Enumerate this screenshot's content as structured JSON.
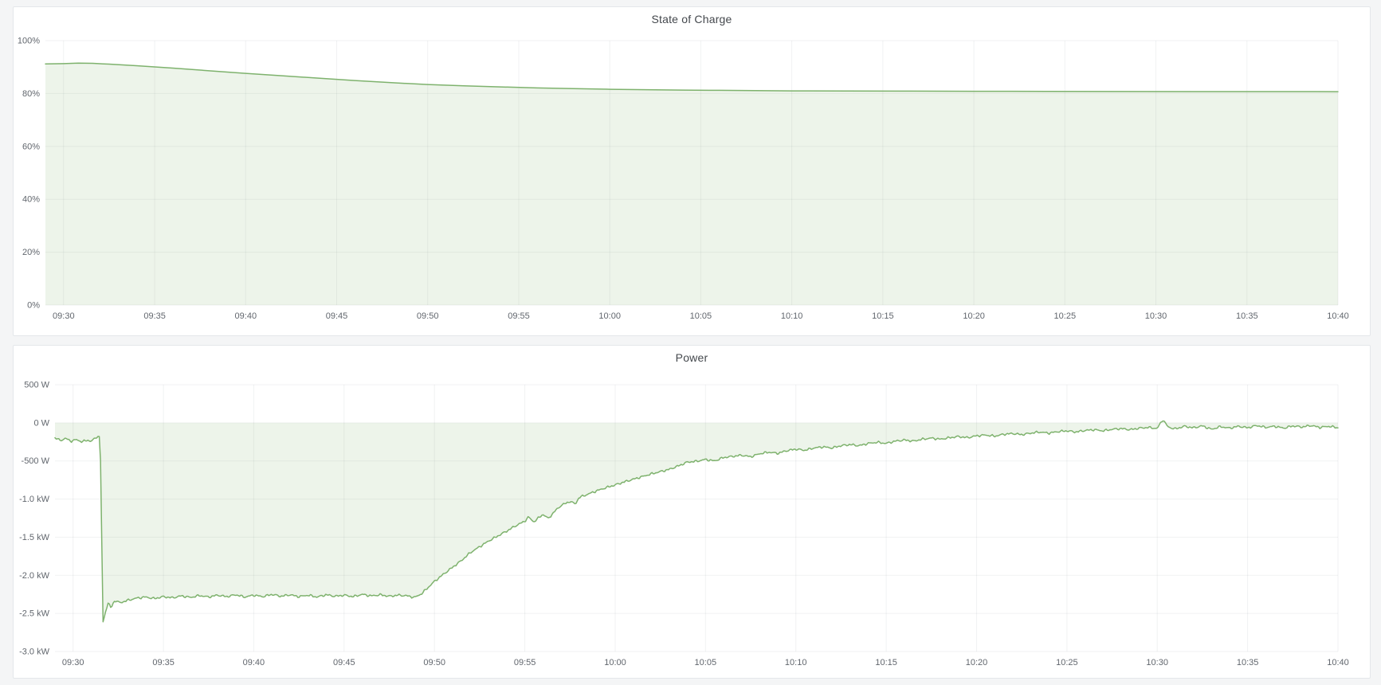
{
  "colors": {
    "page_background": "#f4f5f6",
    "panel_background": "#ffffff",
    "panel_border": "#e4e7ea",
    "title_text": "#44484d",
    "tick_text": "#61666d",
    "gridline": "rgba(20,30,50,0.06)",
    "series_green": "#7eb26d"
  },
  "chart_data": [
    {
      "type": "area",
      "title": "State of Charge",
      "legend_position": "none",
      "grid": "on",
      "xlabel": "",
      "ylabel": "",
      "x_tick_labels": [
        "09:30",
        "09:35",
        "09:40",
        "09:45",
        "09:50",
        "09:55",
        "10:00",
        "10:05",
        "10:10",
        "10:15",
        "10:20",
        "10:25",
        "10:30",
        "10:35",
        "10:40"
      ],
      "x_tick_minutes": [
        0,
        5,
        10,
        15,
        20,
        25,
        30,
        35,
        40,
        45,
        50,
        55,
        60,
        65,
        70
      ],
      "x_domain_minutes": [
        -1,
        70
      ],
      "y_domain": [
        0,
        100
      ],
      "y_ticks": [
        {
          "label": "100%",
          "value": 100
        },
        {
          "label": "80%",
          "value": 80
        },
        {
          "label": "60%",
          "value": 60
        },
        {
          "label": "40%",
          "value": 40
        },
        {
          "label": "20%",
          "value": 20
        },
        {
          "label": "0%",
          "value": 0
        }
      ],
      "unit": "percent",
      "line_color": "#7eb26d",
      "fill_color": "rgba(126,178,109,0.14)",
      "fill_to_value": 0,
      "points": [
        [
          -1,
          91.2
        ],
        [
          0,
          91.3
        ],
        [
          0.8,
          91.5
        ],
        [
          1.6,
          91.4
        ],
        [
          2.5,
          91.1
        ],
        [
          4,
          90.5
        ],
        [
          6,
          89.6
        ],
        [
          8,
          88.6
        ],
        [
          10,
          87.6
        ],
        [
          12,
          86.7
        ],
        [
          14,
          85.8
        ],
        [
          16,
          84.9
        ],
        [
          18,
          84.1
        ],
        [
          20,
          83.4
        ],
        [
          22,
          82.9
        ],
        [
          24,
          82.5
        ],
        [
          26,
          82.1
        ],
        [
          28,
          81.85
        ],
        [
          30,
          81.6
        ],
        [
          32,
          81.45
        ],
        [
          34,
          81.3
        ],
        [
          36,
          81.2
        ],
        [
          38,
          81.1
        ],
        [
          40,
          81.0
        ],
        [
          43,
          80.95
        ],
        [
          46,
          80.9
        ],
        [
          50,
          80.85
        ],
        [
          54,
          80.8
        ],
        [
          58,
          80.77
        ],
        [
          62,
          80.74
        ],
        [
          66,
          80.72
        ],
        [
          70,
          80.7
        ]
      ]
    },
    {
      "type": "area",
      "title": "Power",
      "legend_position": "none",
      "grid": "on",
      "xlabel": "",
      "ylabel": "",
      "x_tick_labels": [
        "09:30",
        "09:35",
        "09:40",
        "09:45",
        "09:50",
        "09:55",
        "10:00",
        "10:05",
        "10:10",
        "10:15",
        "10:20",
        "10:25",
        "10:30",
        "10:35",
        "10:40"
      ],
      "x_tick_minutes": [
        0,
        5,
        10,
        15,
        20,
        25,
        30,
        35,
        40,
        45,
        50,
        55,
        60,
        65,
        70
      ],
      "x_domain_minutes": [
        -1,
        70
      ],
      "y_domain": [
        -3000,
        500
      ],
      "y_ticks": [
        {
          "label": "500 W",
          "value": 500
        },
        {
          "label": "0 W",
          "value": 0
        },
        {
          "label": "-500 W",
          "value": -500
        },
        {
          "label": "-1.0 kW",
          "value": -1000
        },
        {
          "label": "-1.5 kW",
          "value": -1500
        },
        {
          "label": "-2.0 kW",
          "value": -2000
        },
        {
          "label": "-2.5 kW",
          "value": -2500
        },
        {
          "label": "-3.0 kW",
          "value": -3000
        }
      ],
      "unit": "watt",
      "line_color": "#7eb26d",
      "fill_color": "rgba(126,178,109,0.14)",
      "fill_to_value": 0,
      "noise": {
        "amp_w": 14,
        "step_minutes": 0.07
      },
      "points": [
        [
          -1,
          -200
        ],
        [
          -0.7,
          -230
        ],
        [
          -0.4,
          -205
        ],
        [
          -0.1,
          -240
        ],
        [
          0.2,
          -220
        ],
        [
          0.5,
          -250
        ],
        [
          0.8,
          -225
        ],
        [
          1.0,
          -245
        ],
        [
          1.2,
          -205
        ],
        [
          1.35,
          -175
        ],
        [
          1.5,
          -190
        ],
        [
          1.58,
          -1400
        ],
        [
          1.65,
          -2630
        ],
        [
          1.8,
          -2470
        ],
        [
          1.95,
          -2360
        ],
        [
          2.1,
          -2430
        ],
        [
          2.3,
          -2330
        ],
        [
          2.6,
          -2360
        ],
        [
          3,
          -2330
        ],
        [
          3.5,
          -2300
        ],
        [
          4,
          -2285
        ],
        [
          4.5,
          -2305
        ],
        [
          5,
          -2280
        ],
        [
          5.5,
          -2295
        ],
        [
          6,
          -2270
        ],
        [
          6.5,
          -2290
        ],
        [
          7,
          -2265
        ],
        [
          7.5,
          -2285
        ],
        [
          8,
          -2260
        ],
        [
          8.5,
          -2280
        ],
        [
          9,
          -2255
        ],
        [
          9.5,
          -2285
        ],
        [
          10,
          -2260
        ],
        [
          10.5,
          -2280
        ],
        [
          11,
          -2250
        ],
        [
          11.5,
          -2275
        ],
        [
          12,
          -2255
        ],
        [
          12.5,
          -2280
        ],
        [
          13,
          -2260
        ],
        [
          13.5,
          -2285
        ],
        [
          14,
          -2255
        ],
        [
          14.5,
          -2275
        ],
        [
          15,
          -2260
        ],
        [
          15.5,
          -2280
        ],
        [
          16,
          -2250
        ],
        [
          16.5,
          -2270
        ],
        [
          17,
          -2255
        ],
        [
          17.5,
          -2275
        ],
        [
          18,
          -2260
        ],
        [
          18.5,
          -2270
        ],
        [
          18.9,
          -2290
        ],
        [
          19.3,
          -2240
        ],
        [
          19.6,
          -2170
        ],
        [
          20,
          -2080
        ],
        [
          20.5,
          -1985
        ],
        [
          21,
          -1895
        ],
        [
          21.5,
          -1805
        ],
        [
          22,
          -1700
        ],
        [
          22.5,
          -1625
        ],
        [
          23,
          -1550
        ],
        [
          23.5,
          -1485
        ],
        [
          24,
          -1420
        ],
        [
          24.5,
          -1350
        ],
        [
          25,
          -1290
        ],
        [
          25.2,
          -1235
        ],
        [
          25.5,
          -1300
        ],
        [
          26,
          -1200
        ],
        [
          26.3,
          -1255
        ],
        [
          26.7,
          -1150
        ],
        [
          27,
          -1085
        ],
        [
          27.5,
          -1030
        ],
        [
          27.8,
          -1065
        ],
        [
          28,
          -980
        ],
        [
          28.5,
          -935
        ],
        [
          29,
          -890
        ],
        [
          29.5,
          -850
        ],
        [
          30,
          -815
        ],
        [
          30.5,
          -775
        ],
        [
          31,
          -740
        ],
        [
          31.5,
          -705
        ],
        [
          32,
          -670
        ],
        [
          32.5,
          -640
        ],
        [
          33,
          -610
        ],
        [
          33.5,
          -565
        ],
        [
          34,
          -515
        ],
        [
          34.5,
          -505
        ],
        [
          35,
          -480
        ],
        [
          35.5,
          -500
        ],
        [
          36,
          -455
        ],
        [
          36.5,
          -440
        ],
        [
          37,
          -425
        ],
        [
          37.5,
          -445
        ],
        [
          38,
          -405
        ],
        [
          38.5,
          -385
        ],
        [
          39,
          -400
        ],
        [
          39.5,
          -365
        ],
        [
          40,
          -345
        ],
        [
          40.5,
          -360
        ],
        [
          41,
          -330
        ],
        [
          41.5,
          -315
        ],
        [
          42,
          -330
        ],
        [
          42.5,
          -300
        ],
        [
          43,
          -285
        ],
        [
          43.5,
          -300
        ],
        [
          44,
          -270
        ],
        [
          44.5,
          -255
        ],
        [
          45,
          -270
        ],
        [
          45.5,
          -240
        ],
        [
          46,
          -225
        ],
        [
          46.5,
          -240
        ],
        [
          47,
          -215
        ],
        [
          47.5,
          -200
        ],
        [
          48,
          -215
        ],
        [
          48.5,
          -195
        ],
        [
          49,
          -180
        ],
        [
          49.5,
          -195
        ],
        [
          50,
          -170
        ],
        [
          50.5,
          -160
        ],
        [
          51,
          -175
        ],
        [
          51.5,
          -150
        ],
        [
          52,
          -140
        ],
        [
          52.5,
          -155
        ],
        [
          53,
          -135
        ],
        [
          53.5,
          -120
        ],
        [
          54,
          -135
        ],
        [
          54.5,
          -115
        ],
        [
          55,
          -105
        ],
        [
          55.5,
          -120
        ],
        [
          56,
          -100
        ],
        [
          56.5,
          -90
        ],
        [
          57,
          -105
        ],
        [
          57.5,
          -85
        ],
        [
          58,
          -75
        ],
        [
          58.5,
          -90
        ],
        [
          59,
          -70
        ],
        [
          59.5,
          -60
        ],
        [
          60,
          -75
        ],
        [
          60.3,
          45
        ],
        [
          60.6,
          -55
        ],
        [
          61,
          -80
        ],
        [
          61.5,
          -45
        ],
        [
          62,
          -65
        ],
        [
          62.5,
          -40
        ],
        [
          63,
          -85
        ],
        [
          63.5,
          -50
        ],
        [
          64,
          -70
        ],
        [
          64.5,
          -45
        ],
        [
          65,
          -65
        ],
        [
          65.5,
          -35
        ],
        [
          66,
          -60
        ],
        [
          66.5,
          -45
        ],
        [
          67,
          -70
        ],
        [
          67.5,
          -40
        ],
        [
          68,
          -55
        ],
        [
          68.5,
          -35
        ],
        [
          69,
          -60
        ],
        [
          69.5,
          -45
        ],
        [
          70,
          -65
        ]
      ]
    }
  ]
}
